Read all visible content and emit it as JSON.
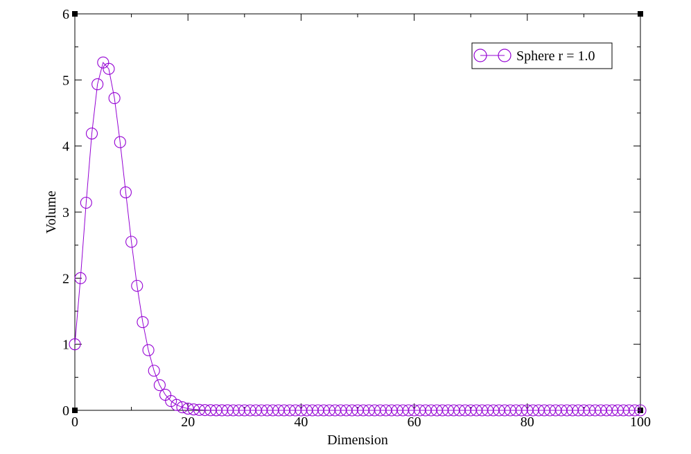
{
  "chart_data": {
    "type": "line",
    "xlabel": "Dimension",
    "ylabel": "Volume",
    "xlim": [
      0,
      100
    ],
    "ylim": [
      0,
      6
    ],
    "x_ticks": [
      "0",
      "20",
      "40",
      "60",
      "80",
      "100"
    ],
    "y_ticks": [
      "0",
      "1",
      "2",
      "3",
      "4",
      "5",
      "6"
    ],
    "grid": false,
    "legend_position": "top-right",
    "series": [
      {
        "name": "Sphere r = 1.0",
        "color": "#9400d3",
        "marker": "open-circle",
        "x": [
          0,
          1,
          2,
          3,
          4,
          5,
          6,
          7,
          8,
          9,
          10,
          11,
          12,
          13,
          14,
          15,
          16,
          17,
          18,
          19,
          20,
          21,
          22,
          23,
          24,
          25,
          26,
          27,
          28,
          29,
          30,
          31,
          32,
          33,
          34,
          35,
          36,
          37,
          38,
          39,
          40,
          41,
          42,
          43,
          44,
          45,
          46,
          47,
          48,
          49,
          50,
          51,
          52,
          53,
          54,
          55,
          56,
          57,
          58,
          59,
          60,
          61,
          62,
          63,
          64,
          65,
          66,
          67,
          68,
          69,
          70,
          71,
          72,
          73,
          74,
          75,
          76,
          77,
          78,
          79,
          80,
          81,
          82,
          83,
          84,
          85,
          86,
          87,
          88,
          89,
          90,
          91,
          92,
          93,
          94,
          95,
          96,
          97,
          98,
          99,
          100
        ],
        "values": [
          1.0,
          2.0,
          3.1416,
          4.1888,
          4.9348,
          5.2638,
          5.1677,
          4.7248,
          4.0587,
          3.2985,
          2.5502,
          1.8841,
          1.3353,
          0.9106,
          0.5993,
          0.3814,
          0.2353,
          0.141,
          0.0821,
          0.0466,
          0.0258,
          0.014,
          0.0074,
          0.0038,
          0.0019,
          0.001,
          0.0005,
          0.0002,
          0.0001,
          0.0001,
          0,
          0,
          0,
          0,
          0,
          0,
          0,
          0,
          0,
          0,
          0,
          0,
          0,
          0,
          0,
          0,
          0,
          0,
          0,
          0,
          0,
          0,
          0,
          0,
          0,
          0,
          0,
          0,
          0,
          0,
          0,
          0,
          0,
          0,
          0,
          0,
          0,
          0,
          0,
          0,
          0,
          0,
          0,
          0,
          0,
          0,
          0,
          0,
          0,
          0,
          0,
          0,
          0,
          0,
          0,
          0,
          0,
          0,
          0,
          0,
          0,
          0,
          0,
          0,
          0,
          0,
          0,
          0,
          0,
          0,
          0
        ]
      }
    ]
  }
}
